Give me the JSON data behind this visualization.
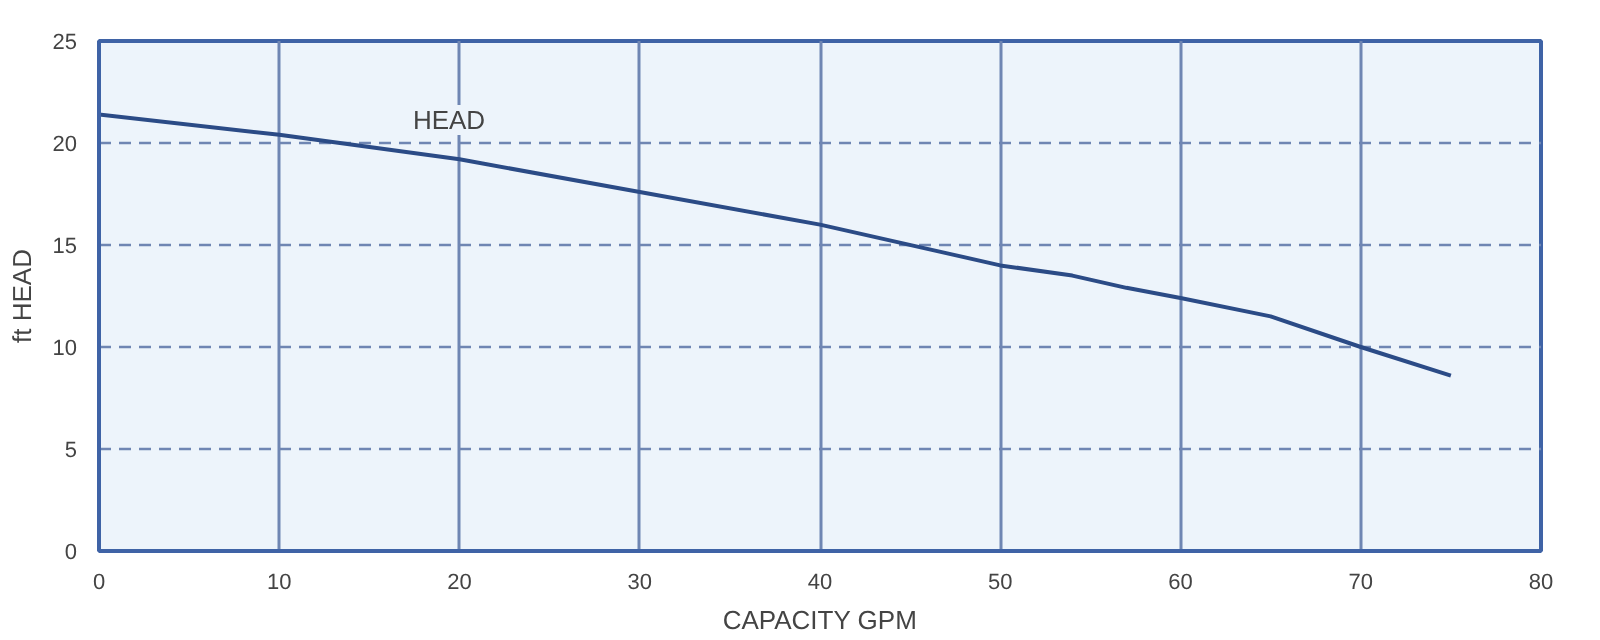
{
  "chart_data": {
    "type": "line",
    "xlabel": "CAPACITY GPM",
    "ylabel": "ft HEAD",
    "x": [
      0,
      10,
      20,
      30,
      40,
      47,
      50,
      54,
      57,
      60,
      65,
      70,
      75
    ],
    "series": [
      {
        "color": "#2b4b86",
        "values": [
          21.4,
          20.4,
          19.2,
          17.6,
          16.0,
          14.6,
          14.0,
          13.5,
          12.9,
          12.4,
          11.5,
          10.0,
          8.6
        ]
      }
    ],
    "annotations": [
      "HEAD"
    ],
    "xlim": [
      0,
      80
    ],
    "xticks": [
      0,
      10,
      20,
      30,
      40,
      50,
      60,
      70,
      80
    ],
    "ylim": [
      0,
      25
    ],
    "yticks": [
      0,
      5,
      10,
      15,
      20,
      25
    ],
    "grid": true,
    "marker": "none",
    "line_style": "solid"
  }
}
